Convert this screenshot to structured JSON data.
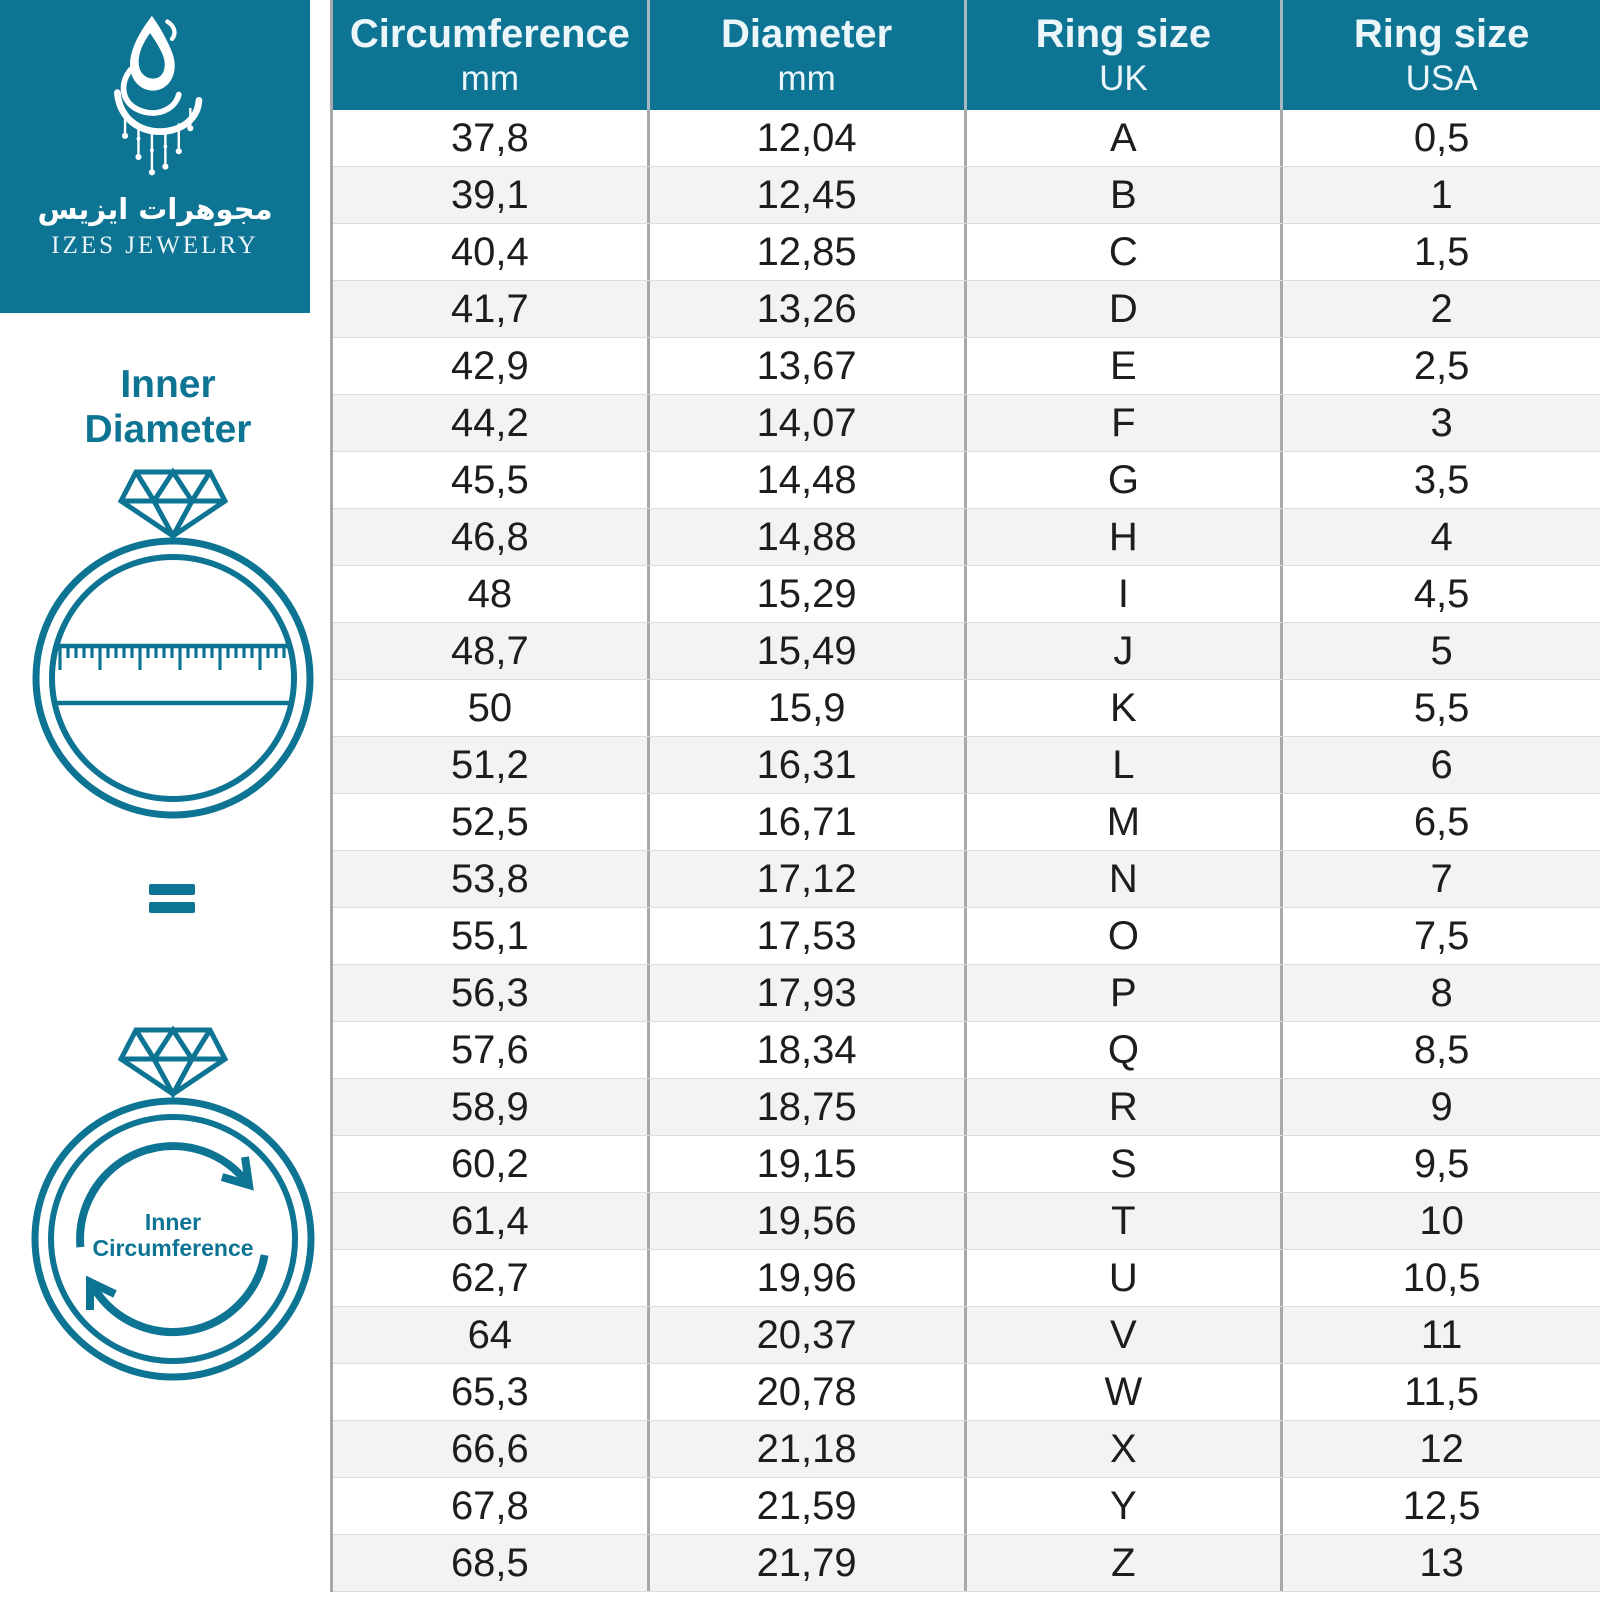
{
  "brand": {
    "logo_arabic": "مجوهرات ايزيس",
    "logo_latin": "IZES JEWELRY"
  },
  "sidebar": {
    "inner_diameter_line1": "Inner",
    "inner_diameter_line2": "Diameter",
    "equals_symbol": "=",
    "inner_circumference_line1": "Inner",
    "inner_circumference_line2": "Circumference"
  },
  "colors": {
    "teal": "#0E7494",
    "header_text": "#EAF6F9",
    "row_alt": "#F3F3F3",
    "divider": "#A5A9A9",
    "text_dark": "#1D1D1B"
  },
  "table": {
    "headers": [
      {
        "label": "Circumference",
        "unit": "mm"
      },
      {
        "label": "Diameter",
        "unit": "mm"
      },
      {
        "label": "Ring size",
        "unit": "UK"
      },
      {
        "label": "Ring size",
        "unit": "USA"
      }
    ]
  },
  "chart_data": {
    "type": "table",
    "title": "Ring size conversion chart",
    "columns": [
      "Circumference mm",
      "Diameter mm",
      "Ring size UK",
      "Ring size USA"
    ],
    "rows": [
      [
        "37,8",
        "12,04",
        "A",
        "0,5"
      ],
      [
        "39,1",
        "12,45",
        "B",
        "1"
      ],
      [
        "40,4",
        "12,85",
        "C",
        "1,5"
      ],
      [
        "41,7",
        "13,26",
        "D",
        "2"
      ],
      [
        "42,9",
        "13,67",
        "E",
        "2,5"
      ],
      [
        "44,2",
        "14,07",
        "F",
        "3"
      ],
      [
        "45,5",
        "14,48",
        "G",
        "3,5"
      ],
      [
        "46,8",
        "14,88",
        "H",
        "4"
      ],
      [
        "48",
        "15,29",
        "I",
        "4,5"
      ],
      [
        "48,7",
        "15,49",
        "J",
        "5"
      ],
      [
        "50",
        "15,9",
        "K",
        "5,5"
      ],
      [
        "51,2",
        "16,31",
        "L",
        "6"
      ],
      [
        "52,5",
        "16,71",
        "M",
        "6,5"
      ],
      [
        "53,8",
        "17,12",
        "N",
        "7"
      ],
      [
        "55,1",
        "17,53",
        "O",
        "7,5"
      ],
      [
        "56,3",
        "17,93",
        "P",
        "8"
      ],
      [
        "57,6",
        "18,34",
        "Q",
        "8,5"
      ],
      [
        "58,9",
        "18,75",
        "R",
        "9"
      ],
      [
        "60,2",
        "19,15",
        "S",
        "9,5"
      ],
      [
        "61,4",
        "19,56",
        "T",
        "10"
      ],
      [
        "62,7",
        "19,96",
        "U",
        "10,5"
      ],
      [
        "64",
        "20,37",
        "V",
        "11"
      ],
      [
        "65,3",
        "20,78",
        "W",
        "11,5"
      ],
      [
        "66,6",
        "21,18",
        "X",
        "12"
      ],
      [
        "67,8",
        "21,59",
        "Y",
        "12,5"
      ],
      [
        "68,5",
        "21,79",
        "Z",
        "13"
      ]
    ]
  }
}
